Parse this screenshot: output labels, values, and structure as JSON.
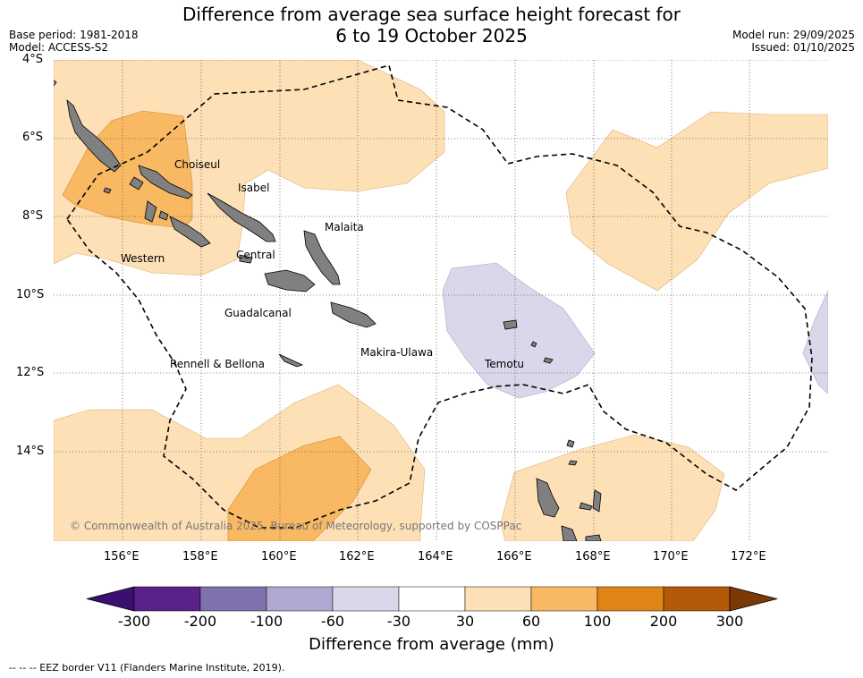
{
  "header": {
    "title_line1": "Difference from average sea surface height forecast for",
    "title_line2": "6 to 19 October 2025",
    "base_period": "Base period: 1981-2018",
    "model": "Model: ACCESS-S2",
    "model_run": "Model run: 29/09/2025",
    "issued": "Issued: 01/10/2025"
  },
  "axes": {
    "lat_labels": [
      "4°S",
      "6°S",
      "8°S",
      "10°S",
      "12°S",
      "14°S"
    ],
    "lon_labels": [
      "156°E",
      "158°E",
      "160°E",
      "162°E",
      "164°E",
      "166°E",
      "168°E",
      "170°E",
      "172°E"
    ]
  },
  "places": {
    "choiseul": "Choiseul",
    "isabel": "Isabel",
    "malaita": "Malaita",
    "western": "Western",
    "central": "Central",
    "guadalcanal": "Guadalcanal",
    "makira": "Makira-Ulawa",
    "rennell": "Rennell & Bellona",
    "temotu": "Temotu"
  },
  "copyright": "© Commonwealth of Australia 2025, Bureau of Meteorology, supported by COSPPac",
  "colorbar": {
    "label": "Difference from average (mm)",
    "ticks": [
      "-300",
      "-200",
      "-100",
      "-60",
      "-30",
      "30",
      "60",
      "100",
      "200",
      "300"
    ],
    "colors": [
      "#3b0f6f",
      "#5a2289",
      "#8072ac",
      "#b0a8d0",
      "#d8d8ea",
      "#ffffff",
      "#fde0b6",
      "#f9b862",
      "#e08416",
      "#b45908",
      "#7b3a05"
    ]
  },
  "footnote": "--  --  -- EEZ border V11 (Flanders Marine Institute, 2019)."
}
